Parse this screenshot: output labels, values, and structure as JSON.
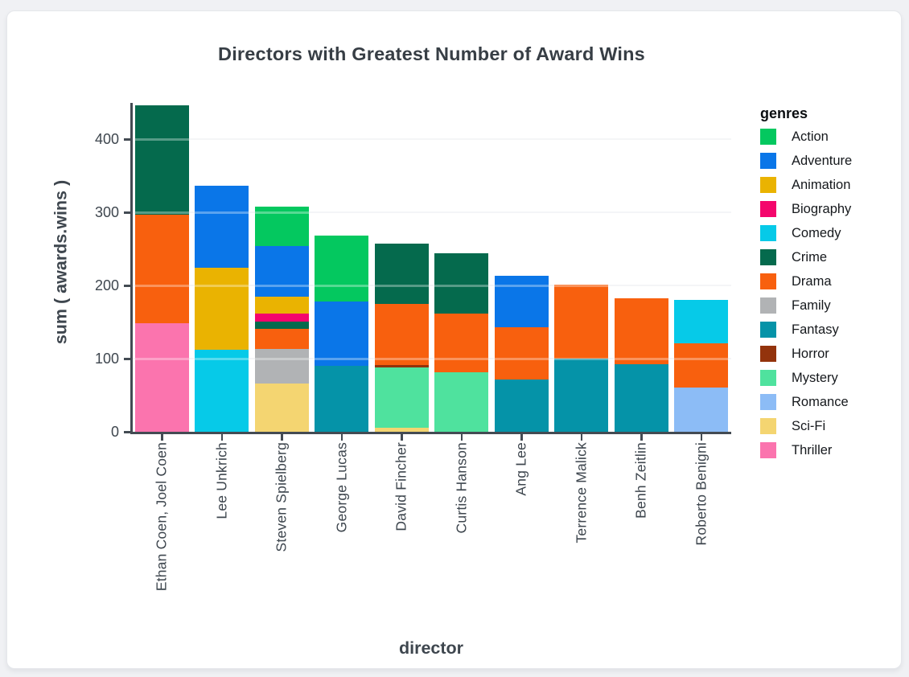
{
  "chart_data": {
    "type": "bar",
    "stacked": true,
    "title": "Directors with Greatest Number of Award Wins",
    "xlabel": "director",
    "ylabel": "sum ( awards.wins )",
    "ylim": [
      0,
      450
    ],
    "yticks": [
      0,
      100,
      200,
      300,
      400
    ],
    "grid": true,
    "legend_title": "genres",
    "legend_position": "right",
    "genres": [
      {
        "name": "Action",
        "color": "#04C85F"
      },
      {
        "name": "Adventure",
        "color": "#0A76E8"
      },
      {
        "name": "Animation",
        "color": "#EAB301"
      },
      {
        "name": "Biography",
        "color": "#F4066C"
      },
      {
        "name": "Comedy",
        "color": "#06CAE8"
      },
      {
        "name": "Crime",
        "color": "#056A4D"
      },
      {
        "name": "Drama",
        "color": "#F8600E"
      },
      {
        "name": "Family",
        "color": "#B1B3B5",
        "texture": "dots-light"
      },
      {
        "name": "Fantasy",
        "color": "#0593A8"
      },
      {
        "name": "Horror",
        "color": "#93330C"
      },
      {
        "name": "Mystery",
        "color": "#4FE29E"
      },
      {
        "name": "Romance",
        "color": "#8CBCF6",
        "texture": "dots-dark"
      },
      {
        "name": "Sci-Fi",
        "color": "#F4D571"
      },
      {
        "name": "Thriller",
        "color": "#FB74AE"
      }
    ],
    "categories": [
      "Ethan Coen, Joel Coen",
      "Lee Unkrich",
      "Steven Spielberg",
      "George Lucas",
      "David Fincher",
      "Curtis Hanson",
      "Ang Lee",
      "Terrence Malick",
      "Benh Zeitlin",
      "Roberto Benigni"
    ],
    "bars": [
      {
        "director": "Ethan Coen, Joel Coen",
        "total": 447,
        "segments": [
          {
            "genre": "Thriller",
            "value": 148
          },
          {
            "genre": "Drama",
            "value": 149
          },
          {
            "genre": "Crime",
            "value": 150
          }
        ]
      },
      {
        "director": "Lee Unkrich",
        "total": 337,
        "segments": [
          {
            "genre": "Comedy",
            "value": 112
          },
          {
            "genre": "Animation",
            "value": 113
          },
          {
            "genre": "Adventure",
            "value": 112
          }
        ]
      },
      {
        "director": "Steven Spielberg",
        "total": 308,
        "segments": [
          {
            "genre": "Sci-Fi",
            "value": 66
          },
          {
            "genre": "Family",
            "value": 47
          },
          {
            "genre": "Drama",
            "value": 28
          },
          {
            "genre": "Crime",
            "value": 10
          },
          {
            "genre": "Biography",
            "value": 11
          },
          {
            "genre": "Animation",
            "value": 23
          },
          {
            "genre": "Adventure",
            "value": 69
          },
          {
            "genre": "Action",
            "value": 54
          }
        ]
      },
      {
        "director": "George Lucas",
        "total": 268,
        "segments": [
          {
            "genre": "Fantasy",
            "value": 90
          },
          {
            "genre": "Adventure",
            "value": 88
          },
          {
            "genre": "Action",
            "value": 90
          }
        ]
      },
      {
        "director": "David Fincher",
        "total": 258,
        "segments": [
          {
            "genre": "Sci-Fi",
            "value": 5
          },
          {
            "genre": "Mystery",
            "value": 83
          },
          {
            "genre": "Horror",
            "value": 3
          },
          {
            "genre": "Drama",
            "value": 84
          },
          {
            "genre": "Crime",
            "value": 83
          }
        ]
      },
      {
        "director": "Curtis Hanson",
        "total": 244,
        "segments": [
          {
            "genre": "Mystery",
            "value": 81
          },
          {
            "genre": "Drama",
            "value": 81
          },
          {
            "genre": "Crime",
            "value": 82
          }
        ]
      },
      {
        "director": "Ang Lee",
        "total": 214,
        "segments": [
          {
            "genre": "Fantasy",
            "value": 71
          },
          {
            "genre": "Drama",
            "value": 72
          },
          {
            "genre": "Adventure",
            "value": 71
          }
        ]
      },
      {
        "director": "Terrence Malick",
        "total": 201,
        "segments": [
          {
            "genre": "Fantasy",
            "value": 100
          },
          {
            "genre": "Drama",
            "value": 101
          }
        ]
      },
      {
        "director": "Benh Zeitlin",
        "total": 183,
        "segments": [
          {
            "genre": "Fantasy",
            "value": 92
          },
          {
            "genre": "Drama",
            "value": 91
          }
        ]
      },
      {
        "director": "Roberto Benigni",
        "total": 181,
        "segments": [
          {
            "genre": "Romance",
            "value": 61
          },
          {
            "genre": "Drama",
            "value": 60
          },
          {
            "genre": "Comedy",
            "value": 60
          }
        ]
      }
    ]
  }
}
